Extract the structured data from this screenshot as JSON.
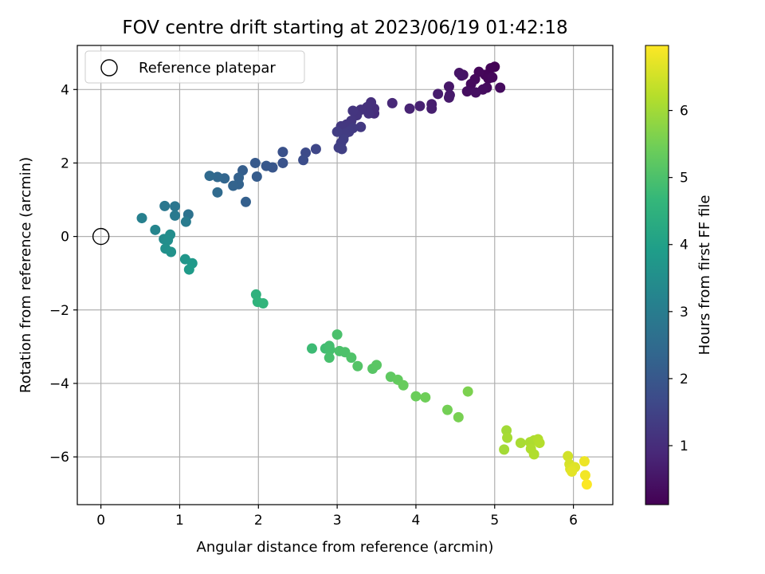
{
  "chart_data": {
    "type": "scatter",
    "title": "FOV centre drift starting at 2023/06/19 01:42:18",
    "xlabel": "Angular distance from reference (arcmin)",
    "ylabel": "Rotation from reference (arcmin)",
    "xlim": [
      -0.3,
      6.5
    ],
    "ylim": [
      -7.3,
      5.2
    ],
    "xticks": [
      0,
      1,
      2,
      3,
      4,
      5,
      6
    ],
    "yticks": [
      -6,
      -4,
      -2,
      0,
      2,
      4
    ],
    "grid": true,
    "legend": {
      "placement": "top-left",
      "entries": [
        "Reference platepar"
      ]
    },
    "reference_point": {
      "x": 0,
      "y": 0
    },
    "colorbar": {
      "label": "Hours from first FF file",
      "colormap": "viridis",
      "range": [
        0.12,
        6.97
      ],
      "ticks": [
        1,
        2,
        3,
        4,
        5,
        6
      ]
    },
    "points": [
      [
        5.0,
        4.62,
        0.15
      ],
      [
        4.95,
        4.58,
        0.18
      ],
      [
        4.88,
        4.4,
        0.2
      ],
      [
        4.92,
        4.3,
        0.22
      ],
      [
        4.8,
        4.48,
        0.24
      ],
      [
        4.97,
        4.33,
        0.26
      ],
      [
        4.75,
        4.28,
        0.28
      ],
      [
        4.7,
        4.15,
        0.3
      ],
      [
        4.9,
        4.05,
        0.32
      ],
      [
        5.07,
        4.05,
        0.34
      ],
      [
        4.85,
        4.0,
        0.36
      ],
      [
        4.65,
        3.95,
        0.38
      ],
      [
        4.76,
        3.92,
        0.4
      ],
      [
        4.6,
        4.4,
        0.45
      ],
      [
        4.55,
        4.45,
        0.5
      ],
      [
        4.58,
        4.38,
        0.52
      ],
      [
        4.42,
        4.08,
        0.55
      ],
      [
        4.43,
        3.85,
        0.58
      ],
      [
        4.42,
        3.78,
        0.6
      ],
      [
        4.28,
        3.88,
        0.65
      ],
      [
        4.2,
        3.6,
        0.68
      ],
      [
        4.2,
        3.48,
        0.7
      ],
      [
        4.05,
        3.55,
        0.75
      ],
      [
        3.92,
        3.48,
        0.8
      ],
      [
        3.7,
        3.63,
        0.9
      ],
      [
        3.47,
        3.35,
        1.0
      ],
      [
        3.47,
        3.48,
        1.02
      ],
      [
        3.43,
        3.65,
        1.05
      ],
      [
        3.38,
        3.52,
        1.08
      ],
      [
        3.4,
        3.35,
        1.1
      ],
      [
        3.3,
        3.45,
        1.12
      ],
      [
        3.25,
        3.3,
        1.15
      ],
      [
        3.2,
        3.42,
        1.18
      ],
      [
        3.18,
        3.15,
        1.2
      ],
      [
        3.12,
        3.05,
        1.22
      ],
      [
        3.05,
        3.0,
        1.25
      ],
      [
        3.3,
        2.98,
        1.28
      ],
      [
        3.2,
        2.95,
        1.3
      ],
      [
        3.15,
        2.85,
        1.32
      ],
      [
        3.1,
        2.8,
        1.34
      ],
      [
        3.0,
        2.85,
        1.36
      ],
      [
        3.08,
        2.65,
        1.38
      ],
      [
        3.05,
        2.55,
        1.4
      ],
      [
        3.02,
        2.42,
        1.42
      ],
      [
        3.06,
        2.38,
        1.44
      ],
      [
        2.73,
        2.38,
        1.6
      ],
      [
        2.6,
        2.28,
        1.7
      ],
      [
        2.57,
        2.08,
        1.75
      ],
      [
        2.31,
        2.3,
        1.85
      ],
      [
        2.31,
        2.0,
        1.9
      ],
      [
        2.18,
        1.88,
        1.95
      ],
      [
        2.1,
        1.92,
        2.0
      ],
      [
        1.96,
        2.0,
        2.05
      ],
      [
        1.98,
        1.63,
        2.1
      ],
      [
        1.8,
        1.8,
        2.15
      ],
      [
        1.84,
        0.94,
        2.2
      ],
      [
        1.75,
        1.6,
        2.25
      ],
      [
        1.75,
        1.42,
        2.28
      ],
      [
        1.68,
        1.38,
        2.3
      ],
      [
        1.57,
        1.58,
        2.35
      ],
      [
        1.48,
        1.62,
        2.4
      ],
      [
        1.38,
        1.65,
        2.45
      ],
      [
        1.48,
        1.2,
        2.5
      ],
      [
        1.11,
        0.6,
        2.7
      ],
      [
        0.94,
        0.82,
        2.8
      ],
      [
        0.81,
        0.83,
        2.85
      ],
      [
        0.94,
        0.57,
        2.9
      ],
      [
        1.08,
        0.4,
        2.95
      ],
      [
        0.52,
        0.5,
        3.1
      ],
      [
        0.69,
        0.18,
        3.25
      ],
      [
        0.8,
        -0.07,
        3.4
      ],
      [
        0.88,
        0.05,
        3.45
      ],
      [
        0.85,
        -0.1,
        3.5
      ],
      [
        0.82,
        -0.33,
        3.55
      ],
      [
        0.89,
        -0.42,
        3.6
      ],
      [
        1.07,
        -0.62,
        3.7
      ],
      [
        1.16,
        -0.73,
        3.8
      ],
      [
        1.12,
        -0.9,
        3.85
      ],
      [
        1.97,
        -1.58,
        4.5
      ],
      [
        1.99,
        -1.78,
        4.55
      ],
      [
        2.06,
        -1.82,
        4.6
      ],
      [
        2.68,
        -3.05,
        4.8
      ],
      [
        2.85,
        -3.05,
        4.85
      ],
      [
        2.9,
        -2.98,
        4.9
      ],
      [
        2.91,
        -3.08,
        4.92
      ],
      [
        2.9,
        -3.3,
        4.95
      ],
      [
        3.0,
        -2.67,
        4.98
      ],
      [
        3.03,
        -3.12,
        5.0
      ],
      [
        3.1,
        -3.15,
        5.02
      ],
      [
        3.18,
        -3.3,
        5.05
      ],
      [
        3.26,
        -3.53,
        5.1
      ],
      [
        3.45,
        -3.6,
        5.15
      ],
      [
        3.5,
        -3.5,
        5.18
      ],
      [
        3.68,
        -3.82,
        5.25
      ],
      [
        3.77,
        -3.9,
        5.3
      ],
      [
        3.84,
        -4.05,
        5.35
      ],
      [
        4.0,
        -4.35,
        5.4
      ],
      [
        4.12,
        -4.38,
        5.45
      ],
      [
        4.4,
        -4.72,
        5.5
      ],
      [
        4.54,
        -4.92,
        5.55
      ],
      [
        4.66,
        -4.22,
        5.6
      ],
      [
        5.15,
        -5.28,
        6.0
      ],
      [
        5.12,
        -5.8,
        6.02
      ],
      [
        5.16,
        -5.48,
        6.05
      ],
      [
        5.33,
        -5.62,
        6.08
      ],
      [
        5.45,
        -5.6,
        6.1
      ],
      [
        5.5,
        -5.55,
        6.12
      ],
      [
        5.46,
        -5.78,
        6.14
      ],
      [
        5.5,
        -5.93,
        6.16
      ],
      [
        5.55,
        -5.52,
        6.18
      ],
      [
        5.57,
        -5.62,
        6.2
      ],
      [
        5.93,
        -5.98,
        6.5
      ],
      [
        5.95,
        -6.2,
        6.55
      ],
      [
        5.96,
        -6.33,
        6.6
      ],
      [
        6.02,
        -6.28,
        6.65
      ],
      [
        5.98,
        -6.4,
        6.7
      ],
      [
        6.14,
        -6.12,
        6.8
      ],
      [
        6.15,
        -6.5,
        6.85
      ],
      [
        6.17,
        -6.75,
        6.95
      ]
    ]
  },
  "viridis_stops": [
    "#440154",
    "#482878",
    "#3e4989",
    "#31688e",
    "#26828e",
    "#1f9e89",
    "#35b779",
    "#6ece58",
    "#b5de2b",
    "#fde725"
  ]
}
